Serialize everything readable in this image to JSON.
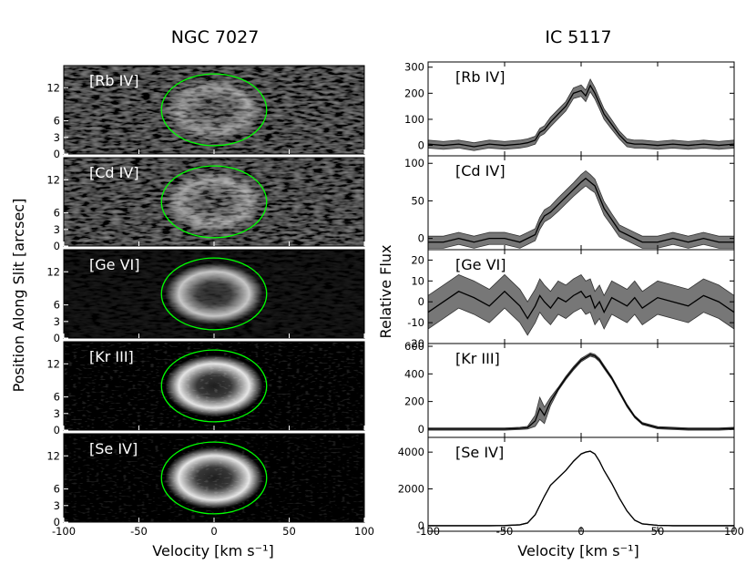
{
  "figure": {
    "left_title": "NGC 7027",
    "right_title": "IC 5117"
  },
  "chart_data": [
    {
      "type": "heatmap",
      "name": "NGC 7027",
      "title": "NGC 7027",
      "xlabel": "Velocity [km s⁻¹]",
      "ylabel": "Position Along Slit [arcsec]",
      "xlim": [
        -100,
        100
      ],
      "ylim": [
        0,
        16
      ],
      "xticks": [
        -100,
        -50,
        0,
        50,
        100
      ],
      "yticks": [
        0,
        3,
        6,
        12
      ],
      "ellipse": {
        "center_velocity": 0,
        "center_position": 8,
        "velocity_halfwidth": 35,
        "position_halfwidth": 6.5,
        "color": "#00ff00"
      },
      "panels": [
        {
          "label": "[Rb IV]",
          "noise": 0.55,
          "ring": 0.45
        },
        {
          "label": "[Cd IV]",
          "noise": 0.55,
          "ring": 0.5
        },
        {
          "label": "[Ge VI]",
          "noise": 0.12,
          "ring": 0.85
        },
        {
          "label": "[Kr III]",
          "noise": 0.03,
          "ring": 1.0
        },
        {
          "label": "[Se IV]",
          "noise": 0.02,
          "ring": 1.0
        }
      ]
    },
    {
      "type": "line",
      "name": "IC 5117",
      "title": "IC 5117",
      "xlabel": "Velocity [km s⁻¹]",
      "ylabel": "Relative Flux",
      "xlim": [
        -100,
        100
      ],
      "xticks": [
        -100,
        -50,
        0,
        50,
        100
      ],
      "x": [
        -100,
        -90,
        -80,
        -70,
        -60,
        -50,
        -40,
        -35,
        -30,
        -27,
        -24,
        -20,
        -15,
        -10,
        -5,
        0,
        3,
        6,
        9,
        12,
        15,
        20,
        25,
        30,
        35,
        40,
        50,
        60,
        70,
        80,
        90,
        100
      ],
      "panels": [
        {
          "label": "[Rb IV]",
          "ylim": [
            -40,
            320
          ],
          "yticks": [
            0,
            100,
            200,
            300
          ],
          "values": [
            5,
            0,
            5,
            -5,
            5,
            0,
            5,
            10,
            20,
            50,
            60,
            90,
            120,
            150,
            200,
            210,
            190,
            230,
            200,
            160,
            120,
            80,
            40,
            10,
            5,
            5,
            0,
            5,
            0,
            5,
            0,
            5
          ],
          "err": [
            15,
            15,
            15,
            15,
            15,
            15,
            15,
            15,
            15,
            15,
            15,
            18,
            18,
            18,
            20,
            22,
            22,
            24,
            22,
            20,
            20,
            18,
            15,
            15,
            15,
            15,
            15,
            15,
            15,
            15,
            15,
            15
          ]
        },
        {
          "label": "[Cd IV]",
          "ylim": [
            -15,
            110
          ],
          "yticks": [
            0,
            50,
            100
          ],
          "values": [
            -5,
            -5,
            0,
            -5,
            0,
            0,
            -5,
            0,
            5,
            20,
            30,
            35,
            45,
            55,
            65,
            75,
            80,
            75,
            70,
            55,
            40,
            25,
            10,
            5,
            0,
            -5,
            -5,
            0,
            -5,
            0,
            -5,
            -5
          ],
          "err": [
            8,
            8,
            8,
            8,
            8,
            8,
            8,
            8,
            8,
            8,
            8,
            8,
            9,
            9,
            9,
            10,
            10,
            10,
            9,
            9,
            9,
            8,
            8,
            8,
            8,
            8,
            8,
            8,
            8,
            8,
            8,
            8
          ]
        },
        {
          "label": "[Ge VI]",
          "ylim": [
            -20,
            25
          ],
          "yticks": [
            -20,
            -10,
            0,
            10,
            20
          ],
          "values": [
            -5,
            0,
            5,
            2,
            -2,
            5,
            -2,
            -8,
            -2,
            3,
            0,
            -3,
            2,
            0,
            3,
            5,
            2,
            3,
            -3,
            0,
            -5,
            2,
            0,
            -2,
            2,
            -3,
            2,
            0,
            -2,
            3,
            0,
            -5
          ],
          "err": [
            8,
            8,
            8,
            8,
            8,
            8,
            8,
            8,
            8,
            8,
            8,
            8,
            8,
            8,
            8,
            8,
            8,
            8,
            8,
            8,
            8,
            8,
            8,
            8,
            8,
            8,
            8,
            8,
            8,
            8,
            8,
            8
          ]
        },
        {
          "label": "[Kr III]",
          "ylim": [
            -60,
            620
          ],
          "yticks": [
            0,
            200,
            400,
            600
          ],
          "values": [
            0,
            0,
            0,
            0,
            0,
            0,
            5,
            10,
            60,
            150,
            100,
            200,
            290,
            370,
            440,
            500,
            520,
            540,
            530,
            500,
            450,
            370,
            270,
            170,
            90,
            40,
            10,
            5,
            0,
            0,
            0,
            5
          ],
          "err": [
            8,
            8,
            8,
            8,
            8,
            8,
            8,
            10,
            40,
            80,
            60,
            30,
            12,
            12,
            12,
            12,
            12,
            12,
            12,
            12,
            12,
            10,
            10,
            10,
            8,
            8,
            8,
            8,
            8,
            8,
            8,
            8
          ]
        },
        {
          "label": "[Se IV]",
          "ylim": [
            -300,
            4800
          ],
          "yticks": [
            0,
            2000,
            4000
          ],
          "values": [
            0,
            0,
            0,
            0,
            0,
            10,
            50,
            150,
            600,
            1100,
            1600,
            2200,
            2600,
            3000,
            3500,
            3900,
            4000,
            4050,
            3900,
            3500,
            3000,
            2300,
            1500,
            800,
            300,
            100,
            20,
            0,
            0,
            0,
            0,
            0
          ],
          "err": [
            15,
            15,
            15,
            15,
            15,
            15,
            15,
            15,
            15,
            15,
            15,
            15,
            15,
            15,
            15,
            15,
            15,
            15,
            15,
            15,
            15,
            15,
            15,
            15,
            15,
            15,
            15,
            15,
            15,
            15,
            15,
            15
          ]
        }
      ]
    }
  ]
}
